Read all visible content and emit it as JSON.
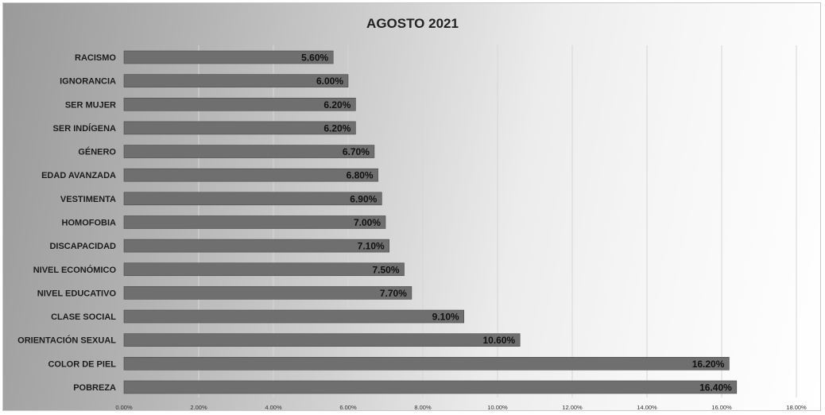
{
  "chart_data": {
    "type": "bar",
    "orientation": "horizontal",
    "title": "AGOSTO 2021",
    "xlabel": "",
    "ylabel": "",
    "categories": [
      "RACISMO",
      "IGNORANCIA",
      "SER MUJER",
      "SER INDÍGENA",
      "GÉNERO",
      "EDAD AVANZADA",
      "VESTIMENTA",
      "HOMOFOBIA",
      "DISCAPACIDAD",
      "NIVEL ECONÓMICO",
      "NIVEL EDUCATIVO",
      "CLASE SOCIAL",
      "ORIENTACIÓN SEXUAL",
      "COLOR DE PIEL",
      "POBREZA"
    ],
    "values": [
      5.6,
      6.0,
      6.2,
      6.2,
      6.7,
      6.8,
      6.9,
      7.0,
      7.1,
      7.5,
      7.7,
      9.1,
      10.6,
      16.2,
      16.4
    ],
    "value_labels": [
      "5.60%",
      "6.00%",
      "6.20%",
      "6.20%",
      "6.70%",
      "6.80%",
      "6.90%",
      "7.00%",
      "7.10%",
      "7.50%",
      "7.70%",
      "9.10%",
      "10.60%",
      "16.20%",
      "16.40%"
    ],
    "xlim": [
      0,
      18
    ],
    "xticks": [
      0,
      2,
      4,
      6,
      8,
      10,
      12,
      14,
      16,
      18
    ],
    "xtick_labels": [
      "0.00%",
      "2.00%",
      "4.00%",
      "6.00%",
      "8.00%",
      "10.00%",
      "12.00%",
      "14.00%",
      "16.00%",
      "18.00%"
    ],
    "grid": true,
    "legend": "none",
    "colors": {
      "bar": "#6f6f6f",
      "bar_edge": "#4a4a4a",
      "grid": "#d6d6d6"
    }
  }
}
